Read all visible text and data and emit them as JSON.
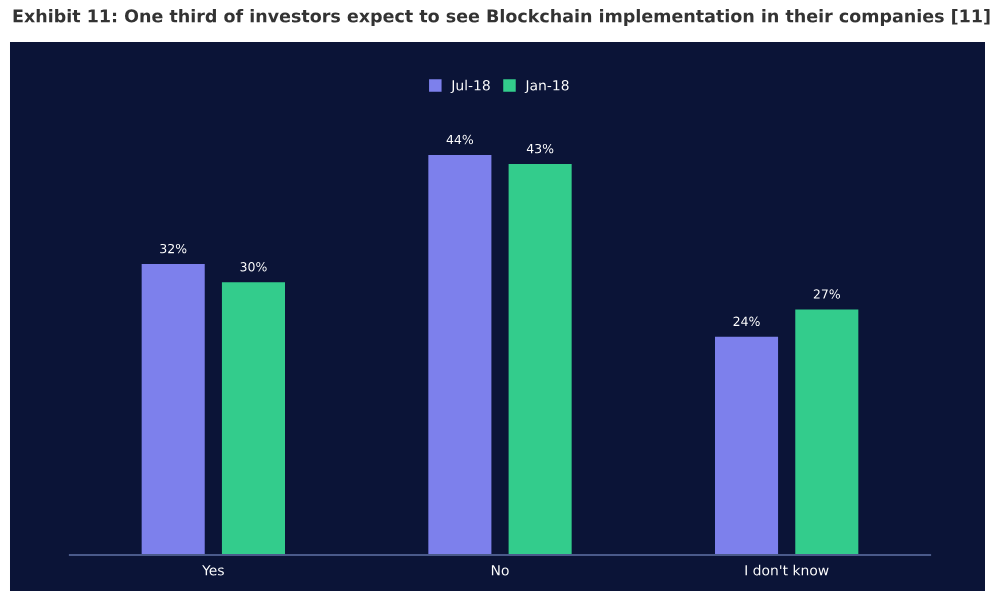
{
  "chart_data": {
    "type": "bar",
    "title": "Exhibit 11: One third of investors expect to see Blockchain implementation in their companies [11]",
    "categories": [
      "Yes",
      "No",
      "I don't know"
    ],
    "series": [
      {
        "name": "Jul-18",
        "color": "#7d80ec",
        "values": [
          32,
          44,
          24
        ],
        "value_labels": [
          "32%",
          "44%",
          "24%"
        ]
      },
      {
        "name": "Jan-18",
        "color": "#33cc8c",
        "values": [
          30,
          43,
          27
        ],
        "value_labels": [
          "30%",
          "43%",
          "27%"
        ]
      }
    ],
    "legend": "top"
  }
}
